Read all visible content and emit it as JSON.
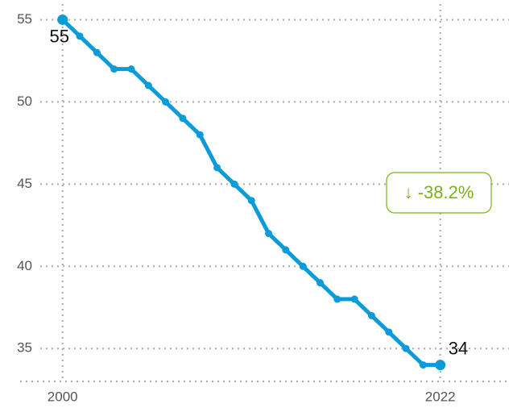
{
  "chart_data": {
    "type": "line",
    "x": [
      2000,
      2001,
      2002,
      2003,
      2004,
      2005,
      2006,
      2007,
      2008,
      2009,
      2010,
      2011,
      2012,
      2013,
      2014,
      2015,
      2016,
      2017,
      2018,
      2019,
      2020,
      2021,
      2022
    ],
    "series": [
      {
        "color": "#0b9bd8",
        "values": [
          55,
          54,
          53,
          52,
          52,
          51,
          50,
          49,
          48,
          46,
          45,
          44,
          42,
          41,
          40,
          39,
          38,
          38,
          37,
          36,
          35,
          34,
          34
        ]
      }
    ],
    "xlim": [
      1998.7,
      2026
    ],
    "xticks": [
      2000,
      2022
    ],
    "ylim": [
      33,
      56.2
    ],
    "yticks": [
      35,
      40,
      45,
      50,
      55
    ],
    "grid": true,
    "annotation": "↓ -38.2%",
    "annotation_color": "#7ab317"
  }
}
